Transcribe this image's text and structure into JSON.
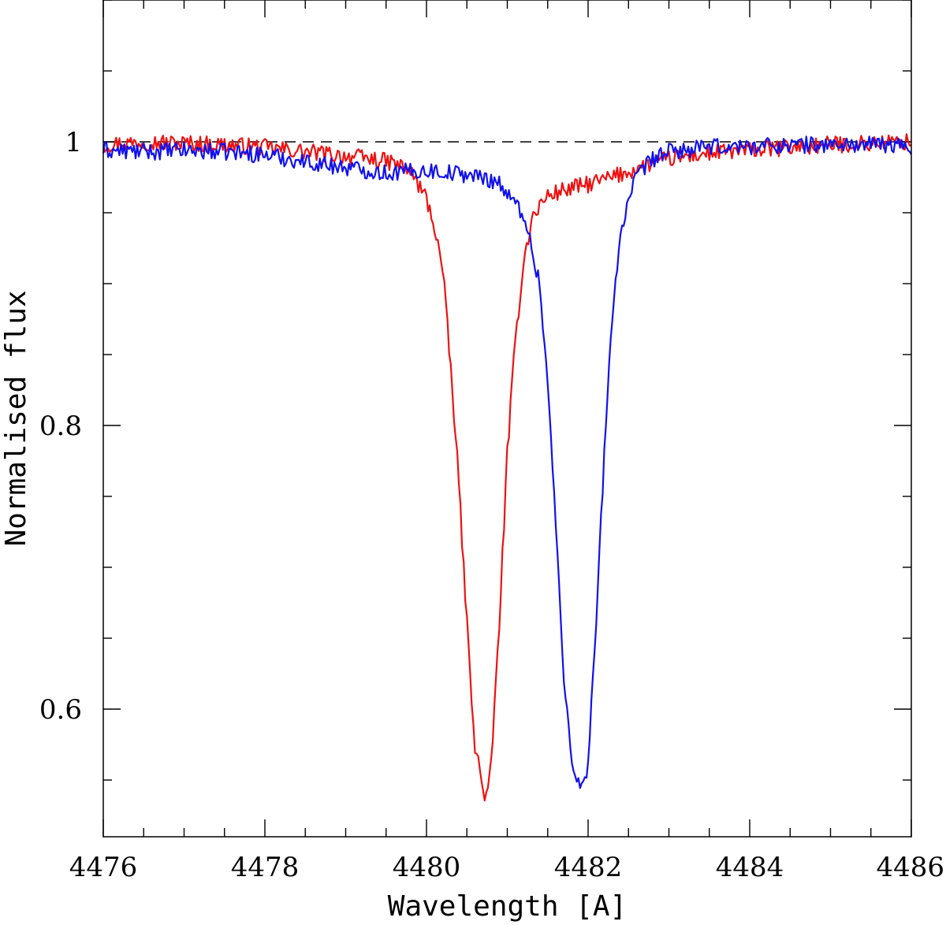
{
  "chart_data": {
    "type": "line",
    "title": "",
    "xlabel": "Wavelength [A]",
    "ylabel": "Normalised flux",
    "xlim": [
      4476,
      4486
    ],
    "ylim": [
      0.51,
      1.1
    ],
    "x_major_ticks": [
      4476,
      4478,
      4480,
      4482,
      4484,
      4486
    ],
    "x_tick_labels": [
      "4476",
      "4478",
      "4480",
      "4482",
      "4484",
      "4486"
    ],
    "x_minor_step": 0.5,
    "y_labeled_ticks": [
      0.6,
      0.8,
      1.0
    ],
    "y_tick_labels": [
      "0.6",
      "0.8",
      "1"
    ],
    "y_minor_step": 0.05,
    "reference_line": {
      "y": 1.0,
      "style": "dashed",
      "color": "#000000"
    },
    "grid": false,
    "series": [
      {
        "name": "red spectrum",
        "color": "#ee1111",
        "x": [
          4476.0,
          4476.5,
          4477.0,
          4477.5,
          4478.0,
          4478.5,
          4479.0,
          4479.3,
          4479.6,
          4479.8,
          4480.0,
          4480.1,
          4480.2,
          4480.3,
          4480.4,
          4480.5,
          4480.6,
          4480.7,
          4480.75,
          4480.8,
          4480.9,
          4481.0,
          4481.1,
          4481.2,
          4481.3,
          4481.4,
          4481.5,
          4481.7,
          4482.0,
          4482.3,
          4482.6,
          4483.0,
          4483.5,
          4484.0,
          4484.5,
          4485.0,
          4485.5,
          4486.0
        ],
        "y": [
          0.998,
          1.0,
          0.999,
          0.998,
          0.996,
          0.993,
          0.99,
          0.988,
          0.985,
          0.979,
          0.96,
          0.94,
          0.91,
          0.84,
          0.76,
          0.66,
          0.575,
          0.543,
          0.537,
          0.56,
          0.66,
          0.78,
          0.86,
          0.915,
          0.945,
          0.955,
          0.962,
          0.966,
          0.97,
          0.975,
          0.981,
          0.988,
          0.992,
          0.994,
          0.996,
          0.998,
          0.999,
          1.0
        ]
      },
      {
        "name": "blue spectrum",
        "color": "#1111ee",
        "x": [
          4476.0,
          4476.5,
          4477.0,
          4477.5,
          4478.0,
          4478.5,
          4479.0,
          4479.5,
          4480.0,
          4480.5,
          4480.9,
          4481.0,
          4481.2,
          4481.4,
          4481.5,
          4481.6,
          4481.7,
          4481.8,
          4481.9,
          4481.95,
          4482.0,
          4482.1,
          4482.2,
          4482.3,
          4482.4,
          4482.5,
          4482.6,
          4482.8,
          4483.0,
          4483.5,
          4484.0,
          4484.5,
          4485.0,
          4485.5,
          4486.0
        ],
        "y": [
          0.994,
          0.993,
          0.994,
          0.993,
          0.991,
          0.986,
          0.982,
          0.978,
          0.98,
          0.977,
          0.972,
          0.962,
          0.95,
          0.9,
          0.83,
          0.73,
          0.62,
          0.565,
          0.545,
          0.545,
          0.565,
          0.66,
          0.78,
          0.88,
          0.935,
          0.958,
          0.975,
          0.988,
          0.993,
          0.996,
          0.997,
          0.998,
          0.998,
          0.998,
          0.997
        ]
      }
    ]
  }
}
